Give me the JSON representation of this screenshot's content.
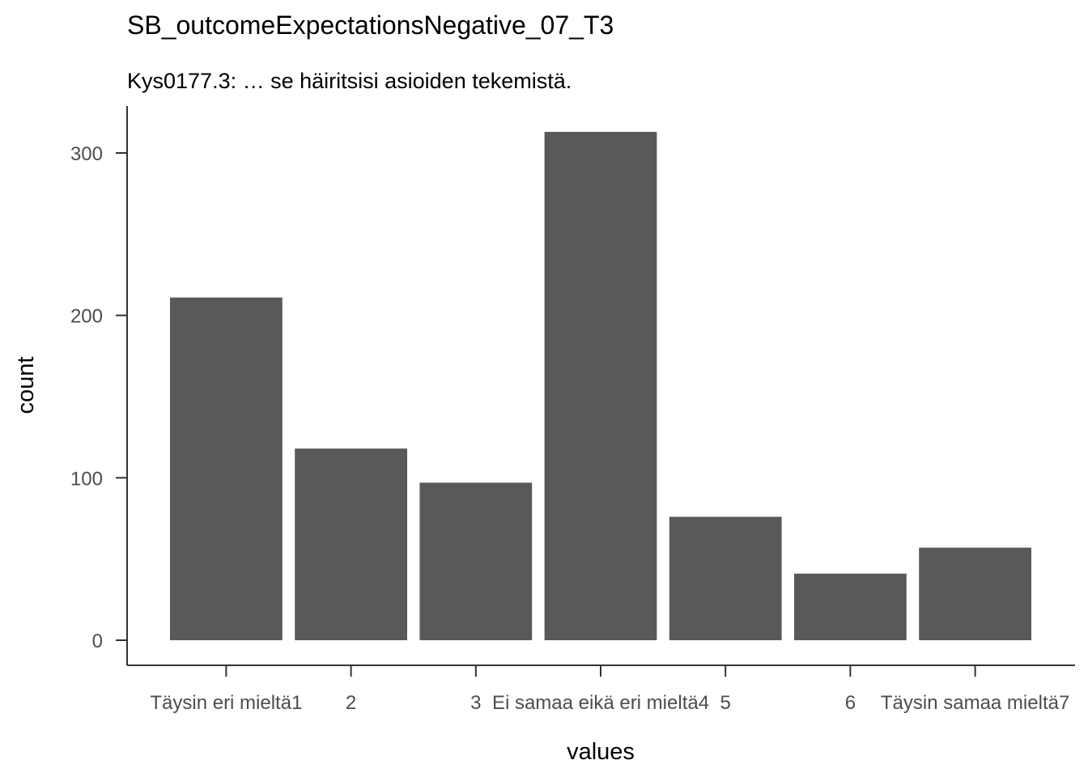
{
  "chart_data": {
    "type": "bar",
    "title": "SB_outcomeExpectationsNegative_07_T3",
    "subtitle": "Kys0177.3: … se häiritsisi asioiden tekemistä.",
    "xlabel": "values",
    "ylabel": "count",
    "categories": [
      "Täysin eri mieltä1",
      "2",
      "3",
      "Ei samaa eikä eri mieltä4",
      "5",
      "6",
      "Täysin samaa mieltä7"
    ],
    "x_tick_labels": [
      [
        "Täysin eri mieltä",
        "1"
      ],
      [
        "2"
      ],
      [
        "3"
      ],
      [
        "Ei samaa eikä eri mieltä",
        "4"
      ],
      [
        "5"
      ],
      [
        "6"
      ],
      [
        "Täysin samaa mieltä",
        "7"
      ]
    ],
    "values": [
      211,
      118,
      97,
      313,
      76,
      41,
      57
    ],
    "ylim": [
      0,
      330
    ],
    "yticks": [
      0,
      100,
      200,
      300
    ],
    "grid": false,
    "colors": {
      "bar": "#595959",
      "axis": "#333333",
      "tick_text": "#4d4d4d"
    }
  }
}
